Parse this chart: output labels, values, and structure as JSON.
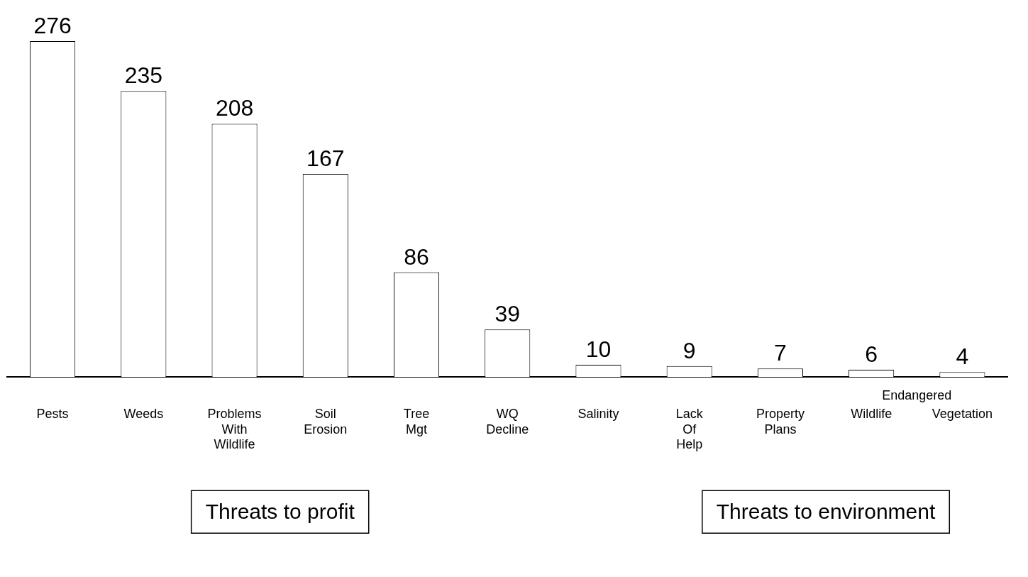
{
  "chart_data": {
    "type": "bar",
    "categories": [
      "Pests",
      "Weeds",
      "Problems With Wildlife",
      "Soil Erosion",
      "Tree Mgt",
      "WQ Decline",
      "Salinity",
      "Lack Of Help",
      "Property Plans",
      "Wildlife",
      "Vegetation"
    ],
    "values": [
      276,
      235,
      208,
      167,
      86,
      39,
      10,
      9,
      7,
      6,
      4
    ],
    "color": "#ffffff",
    "data_labels": true,
    "annotations": [
      "Threats to profit",
      "Threats to environment",
      "Endangered"
    ],
    "grid": false,
    "legend": false
  }
}
